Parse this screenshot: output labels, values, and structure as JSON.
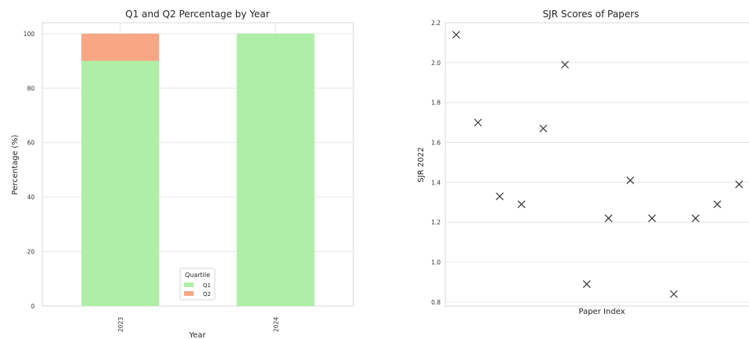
{
  "chart_data": [
    {
      "type": "bar",
      "stacked": true,
      "title": "Q1 and Q2 Percentage by Year",
      "xlabel": "Year",
      "ylabel": "Percentage (%)",
      "categories": [
        "2023",
        "2024"
      ],
      "series": [
        {
          "name": "Q1",
          "values": [
            90,
            100
          ],
          "color": "#aeeea6"
        },
        {
          "name": "Q2",
          "values": [
            10,
            0
          ],
          "color": "#f8a684"
        }
      ],
      "ylim": [
        0,
        104
      ],
      "yticks": [
        "0",
        "20",
        "40",
        "60",
        "80",
        "100"
      ],
      "legend": {
        "title": "Quartile",
        "placement": "bottom-center"
      },
      "grid": true
    },
    {
      "type": "scatter",
      "title": "SJR Scores of Papers",
      "xlabel": "Paper Index",
      "ylabel": "SJR 2022",
      "x": [
        0,
        1,
        2,
        3,
        4,
        5,
        6,
        7,
        8,
        9,
        10,
        11,
        12,
        13
      ],
      "y": [
        2.14,
        1.7,
        1.33,
        1.29,
        1.67,
        1.99,
        0.89,
        1.22,
        1.41,
        1.22,
        0.84,
        1.22,
        1.29,
        1.39
      ],
      "ylim": [
        0.78,
        2.2
      ],
      "yticks": [
        "0.8",
        "1.0",
        "1.2",
        "1.4",
        "1.6",
        "1.8",
        "2.0",
        "2.2"
      ],
      "marker": "x",
      "marker_color": "#333333",
      "grid": true
    }
  ]
}
